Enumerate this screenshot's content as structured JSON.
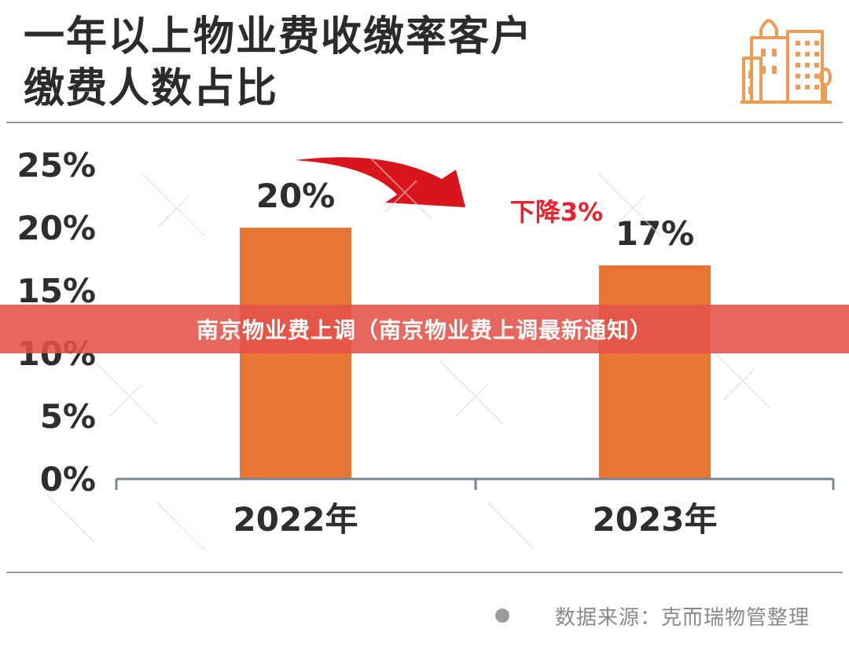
{
  "title": {
    "line1": "一年以上物业费收缴率客户",
    "line2": "缴费人数占比"
  },
  "banner": {
    "text": "南京物业费上调（南京物业费上调最新通知）"
  },
  "source": {
    "text": "数据来源：克而瑞物管整理"
  },
  "colors": {
    "bar": "#E77534",
    "annotation": "#E8232D",
    "banner": "#E45248"
  },
  "icons": {
    "logo": "building-icon",
    "arrow": "red-curved-arrow"
  },
  "chart_data": {
    "type": "bar",
    "categories": [
      "2022年",
      "2023年"
    ],
    "values": [
      20,
      17
    ],
    "value_labels": [
      "20%",
      "17%"
    ],
    "ylim": [
      0,
      25
    ],
    "yticks": [
      0,
      5,
      10,
      15,
      20,
      25
    ],
    "ytick_labels": [
      "0%",
      "5%",
      "10%",
      "15%",
      "20%",
      "25%"
    ],
    "annotation": "下降3%",
    "grid": false,
    "legend": "none"
  }
}
